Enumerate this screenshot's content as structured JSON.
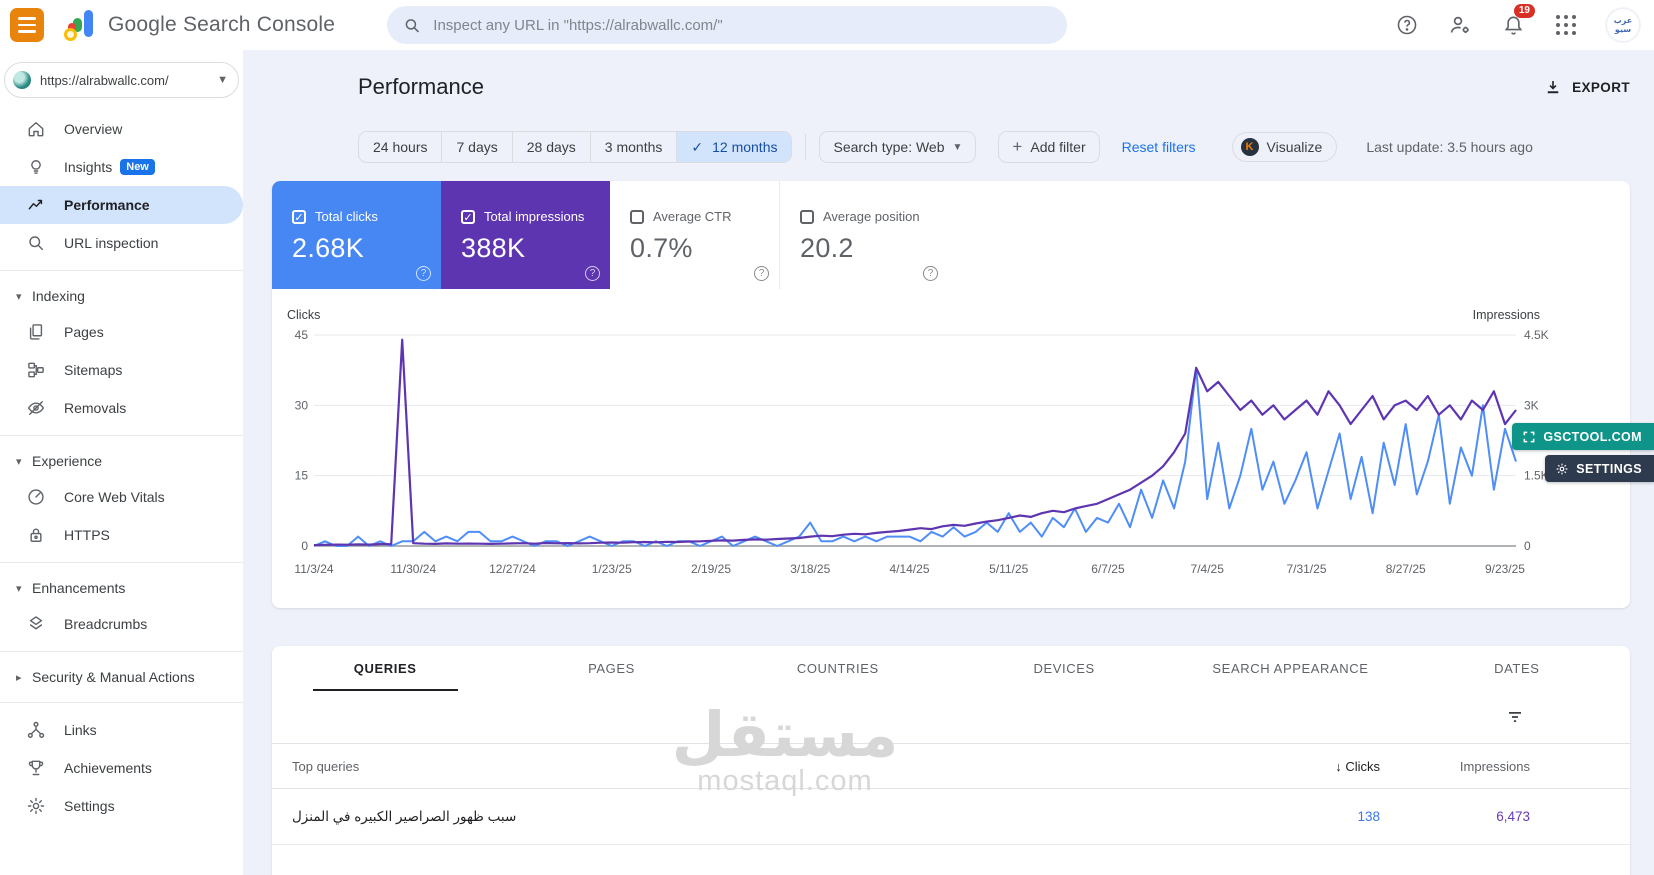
{
  "header": {
    "app_title": "Google Search Console",
    "search_placeholder": "Inspect any URL in \"https://alrabwallc.com/\"",
    "notification_count": "19",
    "avatar_text": "عرب سيو"
  },
  "sidebar": {
    "property": "https://alrabwallc.com/",
    "items": [
      {
        "type": "item",
        "icon": "home",
        "label": "Overview"
      },
      {
        "type": "item",
        "icon": "bulb",
        "label": "Insights",
        "badge": "New"
      },
      {
        "type": "item",
        "icon": "trend",
        "label": "Performance",
        "selected": true
      },
      {
        "type": "item",
        "icon": "search",
        "label": "URL inspection"
      },
      {
        "type": "divider"
      },
      {
        "type": "section",
        "label": "Indexing",
        "expanded": true
      },
      {
        "type": "item",
        "icon": "pages",
        "label": "Pages"
      },
      {
        "type": "item",
        "icon": "sitemap",
        "label": "Sitemaps"
      },
      {
        "type": "item",
        "icon": "eyeoff",
        "label": "Removals"
      },
      {
        "type": "divider"
      },
      {
        "type": "section",
        "label": "Experience",
        "expanded": true
      },
      {
        "type": "item",
        "icon": "gauge",
        "label": "Core Web Vitals"
      },
      {
        "type": "item",
        "icon": "lock",
        "label": "HTTPS"
      },
      {
        "type": "divider"
      },
      {
        "type": "section",
        "label": "Enhancements",
        "expanded": true
      },
      {
        "type": "item",
        "icon": "layers",
        "label": "Breadcrumbs"
      },
      {
        "type": "divider"
      },
      {
        "type": "section",
        "label": "Security & Manual Actions",
        "expanded": false
      },
      {
        "type": "divider"
      },
      {
        "type": "item",
        "icon": "tree",
        "label": "Links"
      },
      {
        "type": "item",
        "icon": "trophy",
        "label": "Achievements"
      },
      {
        "type": "item",
        "icon": "gear",
        "label": "Settings"
      }
    ]
  },
  "page": {
    "title": "Performance",
    "export_label": "EXPORT",
    "last_update": "Last update: 3.5 hours ago"
  },
  "filters": {
    "date_ranges": [
      "24 hours",
      "7 days",
      "28 days",
      "3 months",
      "12 months"
    ],
    "selected_range": "12 months",
    "search_type_label": "Search type: Web",
    "add_filter_label": "Add filter",
    "reset_label": "Reset filters",
    "visualize_label": "Visualize"
  },
  "metrics": [
    {
      "label": "Total clicks",
      "value": "2.68K",
      "checked": true,
      "color": "#4687f4"
    },
    {
      "label": "Total impressions",
      "value": "388K",
      "checked": true,
      "color": "#5e35b1"
    },
    {
      "label": "Average CTR",
      "value": "0.7%",
      "checked": false
    },
    {
      "label": "Average position",
      "value": "20.2",
      "checked": false
    }
  ],
  "chart_data": {
    "type": "line",
    "left_axis": {
      "label": "Clicks",
      "ticks": [
        45,
        30,
        15,
        0
      ],
      "max": 45
    },
    "right_axis": {
      "label": "Impressions",
      "ticks": [
        "4.5K",
        "3K",
        "1.5K",
        "0"
      ],
      "max": 4500
    },
    "x_ticks": [
      "11/3/24",
      "11/30/24",
      "12/27/24",
      "1/23/25",
      "2/19/25",
      "3/18/25",
      "4/14/25",
      "5/11/25",
      "6/7/25",
      "7/4/25",
      "7/31/25",
      "8/27/25",
      "9/23/25"
    ],
    "grid": true,
    "legend_position": "none",
    "series": [
      {
        "name": "Clicks",
        "axis": "left",
        "color": "#4f8df8",
        "values": [
          0,
          1,
          0,
          0,
          2,
          0,
          1,
          0,
          1,
          1,
          3,
          1,
          2,
          1,
          3,
          3,
          1,
          1,
          2,
          1,
          0,
          1,
          1,
          0,
          1,
          2,
          1,
          0,
          1,
          1,
          0,
          1,
          0,
          1,
          1,
          0,
          1,
          2,
          0,
          1,
          2,
          1,
          0,
          1,
          2,
          5,
          1,
          1,
          2,
          1,
          2,
          1,
          2,
          2,
          2,
          1,
          3,
          2,
          4,
          2,
          3,
          5,
          3,
          7,
          3,
          5,
          2,
          6,
          4,
          8,
          3,
          6,
          5,
          9,
          4,
          12,
          6,
          14,
          8,
          18,
          38,
          10,
          22,
          8,
          15,
          25,
          12,
          18,
          9,
          14,
          20,
          8,
          16,
          24,
          10,
          19,
          7,
          22,
          13,
          26,
          11,
          18,
          28,
          9,
          21,
          15,
          30,
          12,
          25,
          18
        ]
      },
      {
        "name": "Impressions",
        "axis": "right",
        "color": "#5e35b1",
        "values": [
          20,
          25,
          30,
          28,
          35,
          30,
          40,
          38,
          4400,
          60,
          50,
          45,
          55,
          48,
          52,
          50,
          45,
          50,
          55,
          60,
          50,
          65,
          58,
          62,
          55,
          60,
          70,
          75,
          70,
          80,
          85,
          78,
          90,
          85,
          95,
          100,
          110,
          120,
          115,
          130,
          140,
          135,
          150,
          160,
          170,
          200,
          220,
          210,
          240,
          260,
          250,
          280,
          300,
          320,
          350,
          380,
          360,
          420,
          450,
          430,
          480,
          520,
          550,
          600,
          650,
          620,
          700,
          750,
          720,
          800,
          850,
          900,
          1000,
          1100,
          1200,
          1350,
          1500,
          1700,
          2000,
          2400,
          3800,
          3300,
          3500,
          3200,
          2900,
          3100,
          2800,
          3000,
          2700,
          2900,
          3100,
          2800,
          3300,
          3000,
          2600,
          2900,
          3200,
          2700,
          3000,
          3100,
          2900,
          3200,
          2800,
          3000,
          2700,
          3100,
          2900,
          3300,
          2600,
          2900
        ]
      }
    ]
  },
  "overlays": [
    {
      "label": "GSCTOOL.COM",
      "color": "#0e9488"
    },
    {
      "label": "SETTINGS",
      "color": "#2e3a4d"
    }
  ],
  "tabs": [
    "QUERIES",
    "PAGES",
    "COUNTRIES",
    "DEVICES",
    "SEARCH APPEARANCE",
    "DATES"
  ],
  "active_tab": "QUERIES",
  "table": {
    "first_col_header": "Top queries",
    "col_clicks": "Clicks",
    "col_impressions": "Impressions",
    "sort_column": "Clicks",
    "rows": [
      {
        "query": "سبب ظهور الصراصير الكبيره في المنزل",
        "clicks": "138",
        "impressions": "6,473"
      }
    ]
  },
  "watermark": {
    "arabic": "مستقل",
    "latin": "mostaql.com"
  }
}
